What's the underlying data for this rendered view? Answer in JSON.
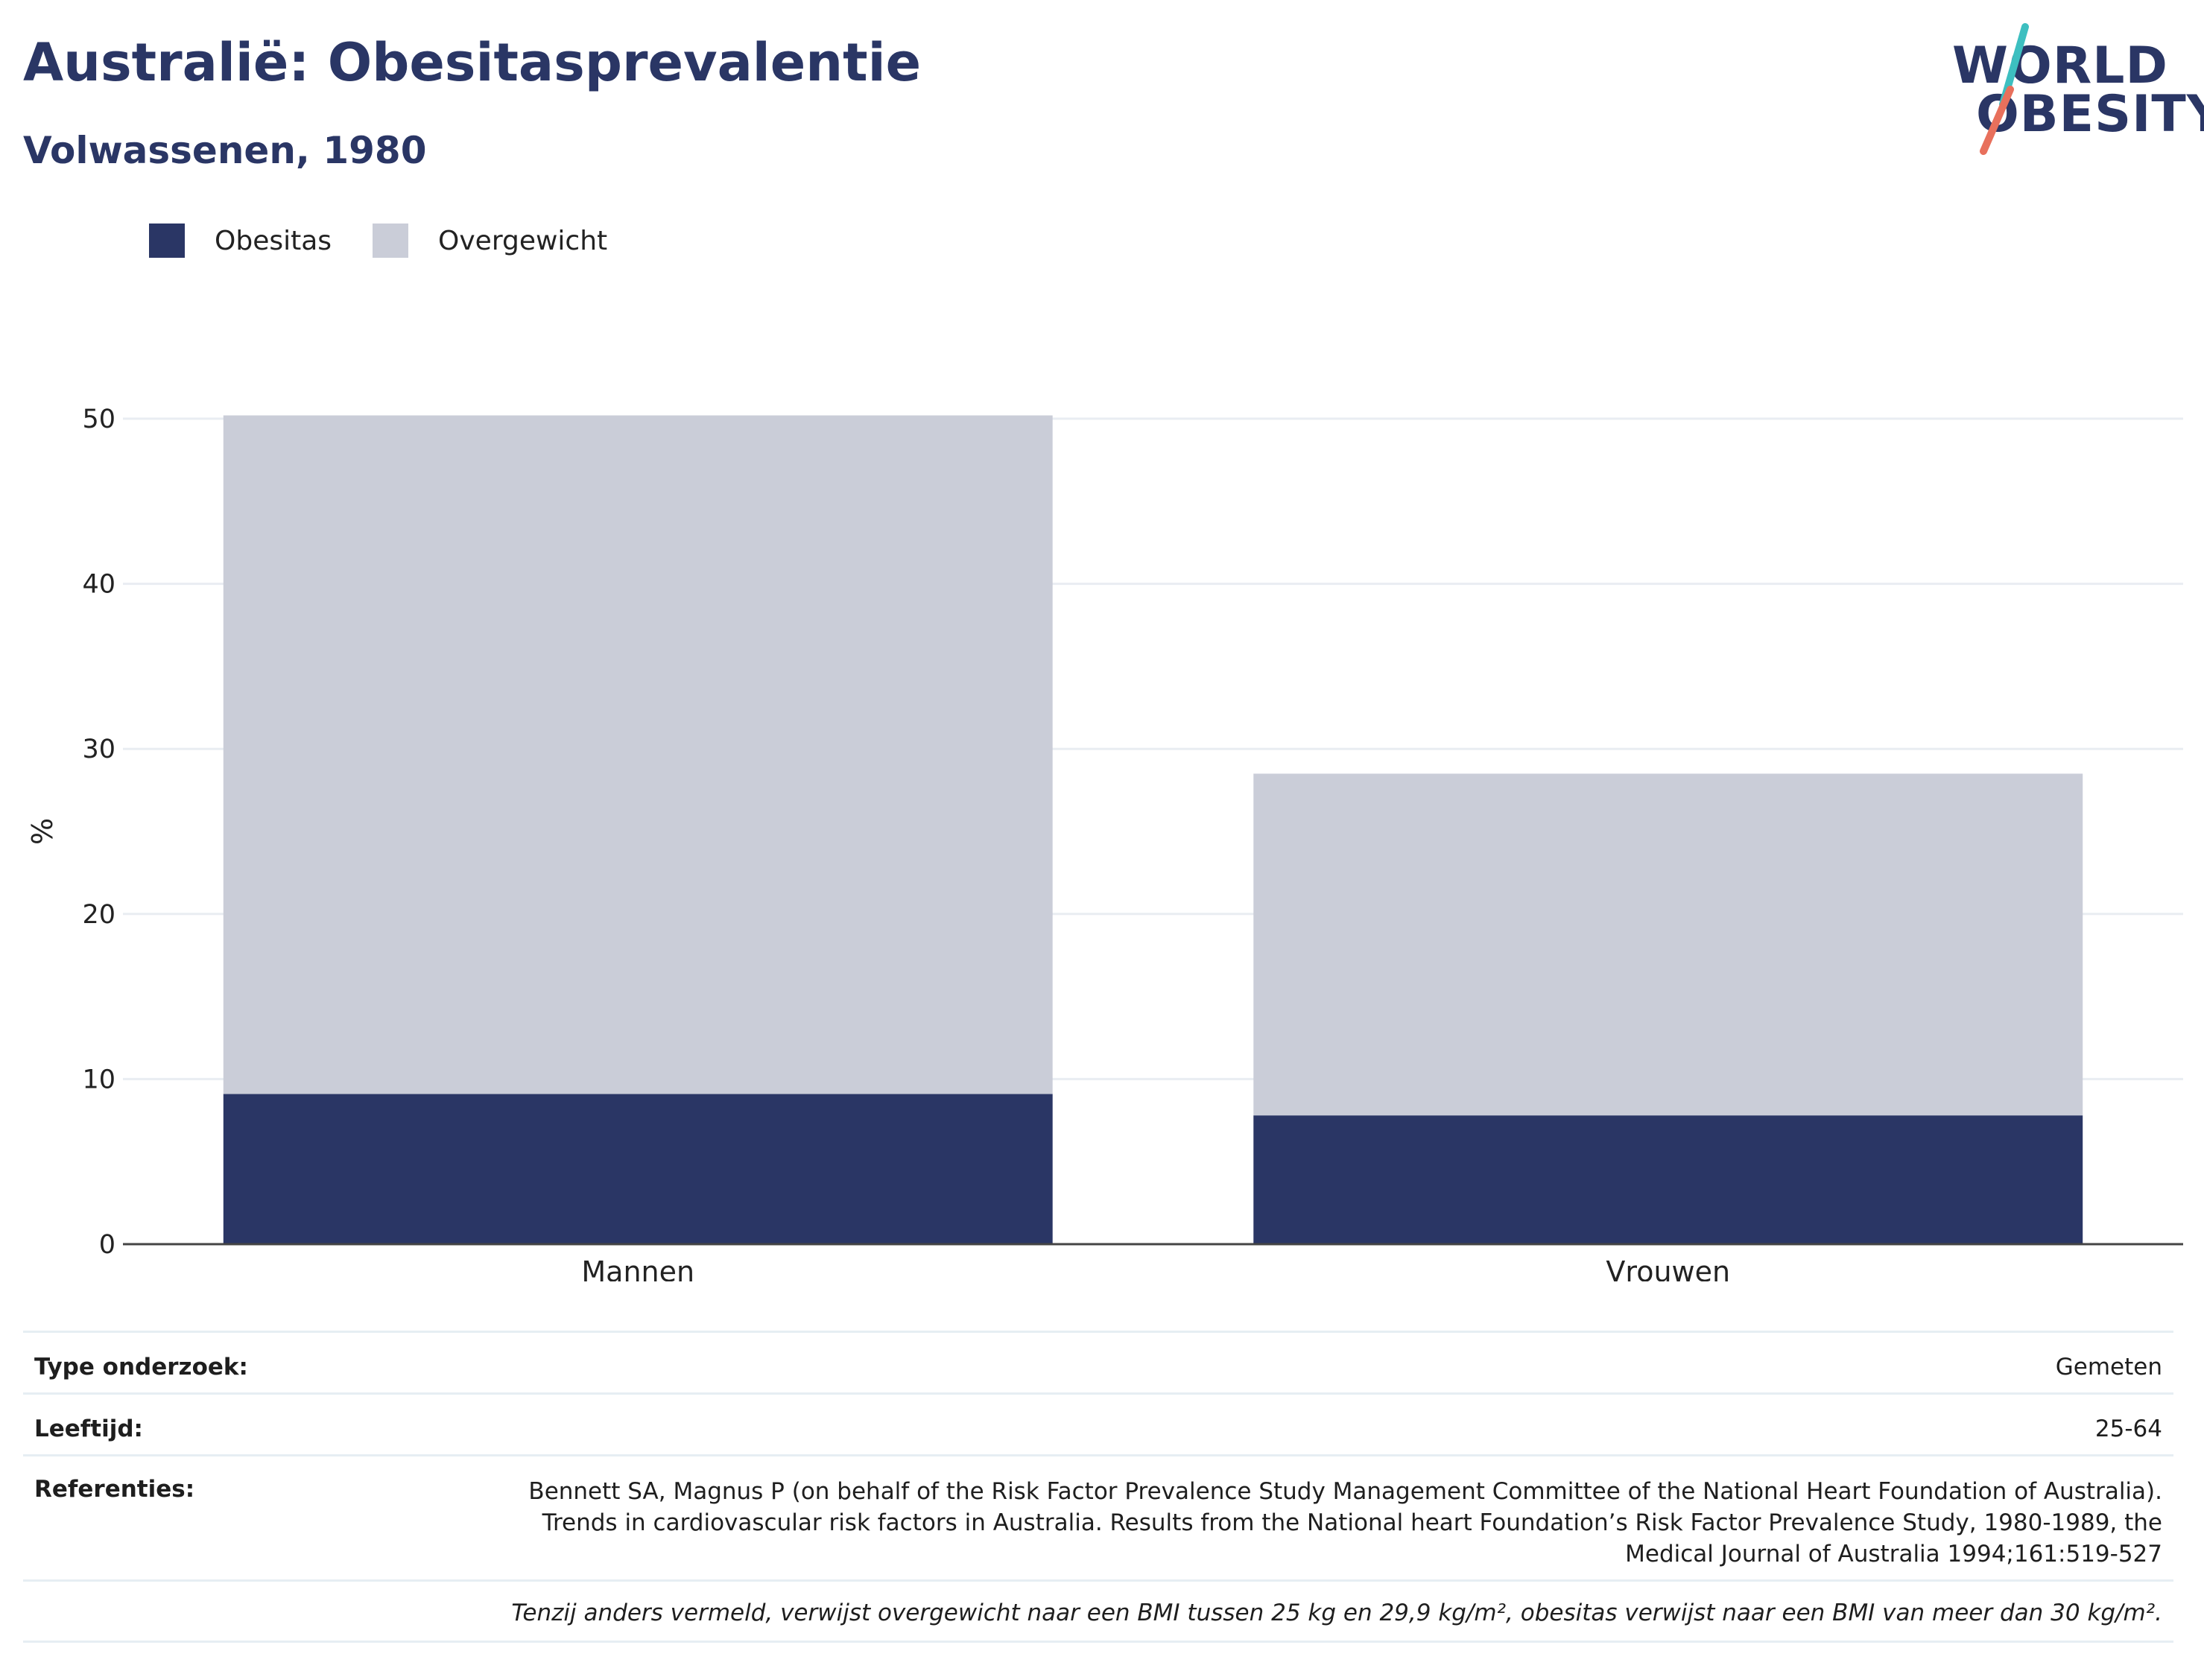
{
  "header": {
    "title": "Australië: Obesitasprevalentie",
    "subtitle": "Volwassenen, 1980"
  },
  "logo": {
    "line1": "WORLD",
    "line2": "OBESITY",
    "slash_colors": [
      "#3dbfc0",
      "#e8705c"
    ]
  },
  "colors": {
    "obesity": "#2a3665",
    "overweight": "#cacdd8",
    "grid": "#e9edf2",
    "axis": "#444444"
  },
  "legend": [
    {
      "label": "Obesitas",
      "color": "#2a3665"
    },
    {
      "label": "Overgewicht",
      "color": "#cacdd8"
    }
  ],
  "chart_data": {
    "type": "bar",
    "stacked": true,
    "categories": [
      "Mannen",
      "Vrouwen"
    ],
    "series": [
      {
        "name": "Obesitas",
        "values": [
          9.1,
          7.8
        ]
      },
      {
        "name": "Overgewicht",
        "values": [
          41.1,
          20.7
        ]
      }
    ],
    "ylabel": "%",
    "ylim": [
      0,
      50
    ],
    "yticks": [
      "0",
      "10",
      "20",
      "30",
      "40",
      "50"
    ],
    "grid": true,
    "legend_position": "top-left"
  },
  "meta": {
    "type_label": "Type onderzoek:",
    "type_value": "Gemeten",
    "age_label": "Leeftijd:",
    "age_value": "25-64",
    "ref_label": "Referenties:",
    "ref_value": "Bennett SA, Magnus P (on behalf of the Risk Factor Prevalence Study Management Committee of the National Heart Foundation of Australia). Trends in cardiovascular risk factors in Australia. Results from the National heart Foundation’s Risk Factor Prevalence Study, 1980-1989, the Medical Journal of Australia 1994;161:519-527",
    "note": "Tenzij anders vermeld, verwijst overgewicht naar een BMI tussen 25 kg en 29,9 kg/m², obesitas verwijst naar een BMI van meer dan 30 kg/m²."
  }
}
